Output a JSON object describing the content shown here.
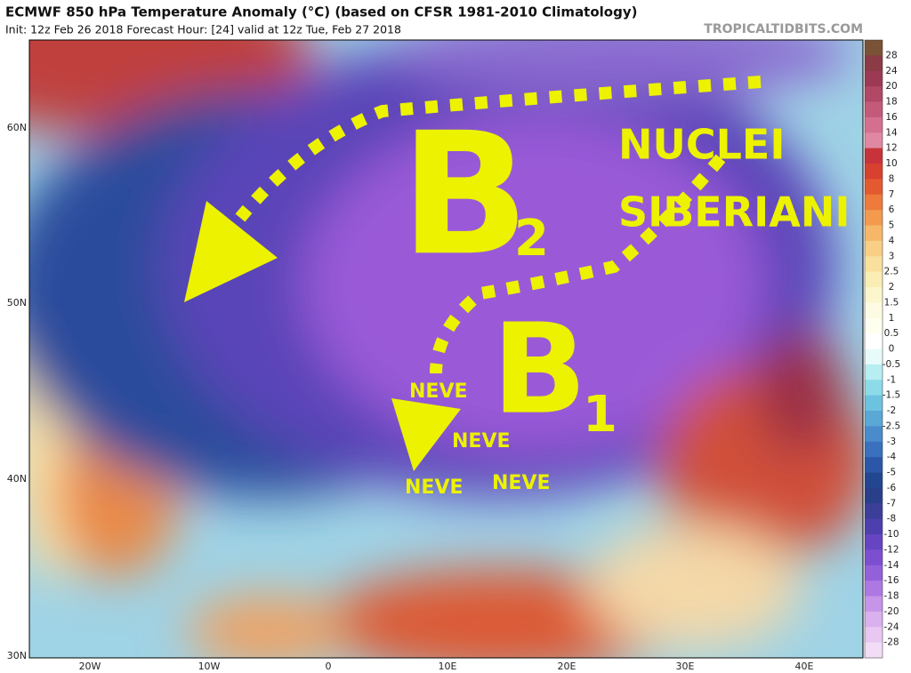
{
  "header": {
    "title": "ECMWF 850 hPa Temperature Anomaly (°C) (based on CFSR 1981-2010 Climatology)",
    "subtitle": "Init: 12z Feb 26 2018   Forecast Hour: [24]   valid at 12z Tue, Feb 27 2018",
    "source": "TROPICALTIDBITS.COM"
  },
  "map": {
    "lat_labels": [
      "60N",
      "50N",
      "40N",
      "30N"
    ],
    "lon_labels": [
      "20W",
      "10W",
      "0",
      "10E",
      "20E",
      "30E",
      "40E"
    ]
  },
  "annotations": {
    "b2_letter": "B",
    "b2_index": "2",
    "b1_letter": "B",
    "b1_index": "1",
    "nuclei": "NUCLEI",
    "siberiani": "SIBERIANI",
    "neve": [
      "NEVE",
      "NEVE",
      "NEVE",
      "NEVE"
    ]
  },
  "colorbar": {
    "labels": [
      "28",
      "24",
      "20",
      "18",
      "16",
      "14",
      "12",
      "10",
      "8",
      "7",
      "6",
      "5",
      "4",
      "3",
      "2.5",
      "2",
      "1.5",
      "1",
      "0.5",
      "0",
      "-0.5",
      "-1",
      "-1.5",
      "-2",
      "-2.5",
      "-3",
      "-4",
      "-5",
      "-6",
      "-7",
      "-8",
      "-10",
      "-12",
      "-14",
      "-16",
      "-18",
      "-20",
      "-24",
      "-28"
    ],
    "colors": [
      "#7a5236",
      "#8a3b45",
      "#9c3a55",
      "#b04866",
      "#c45a7a",
      "#d56f8f",
      "#e088a3",
      "#c8323a",
      "#d8402f",
      "#e45a30",
      "#ee7a3c",
      "#f39a4e",
      "#f6b868",
      "#f8cf84",
      "#f9e09c",
      "#faeeb4",
      "#fbf6cc",
      "#fdfbe4",
      "#fffff0",
      "#ffffff",
      "#e8fbfb",
      "#b6eef2",
      "#8ddbe8",
      "#6cc3e0",
      "#5aa8d6",
      "#4a8ccb",
      "#3a70bd",
      "#2c56a8",
      "#234690",
      "#2a3f8a",
      "#3b3f9a",
      "#4d3fae",
      "#6645c2",
      "#7c4fd0",
      "#9460da",
      "#ad78e2",
      "#c694e8",
      "#dab0ee",
      "#e8c8f2",
      "#f2dcf6"
    ]
  }
}
